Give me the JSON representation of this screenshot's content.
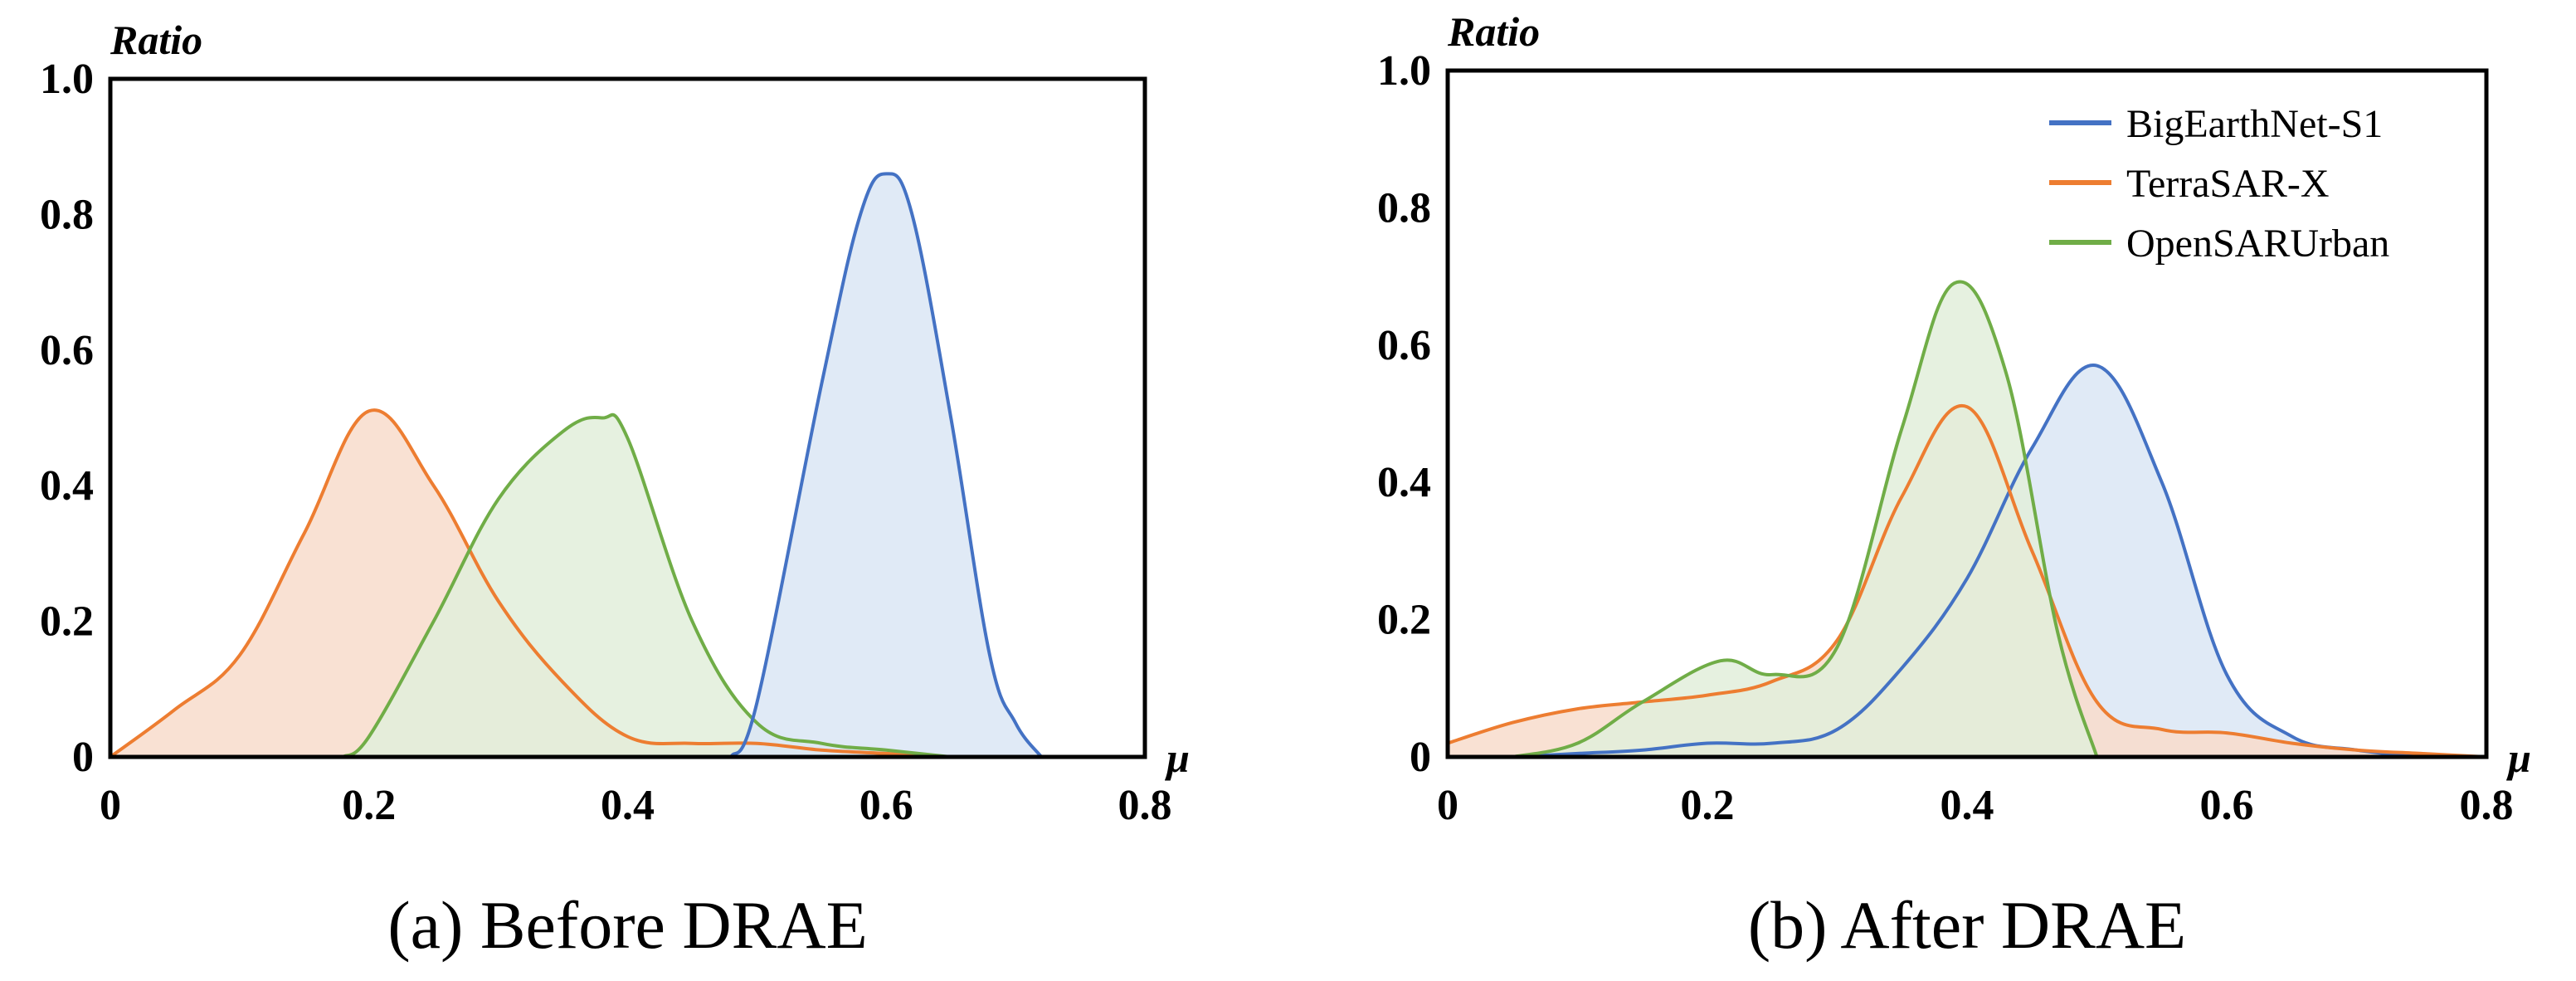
{
  "chart_data": [
    {
      "type": "area",
      "caption": "(a) Before DRAE",
      "xlabel": "μ",
      "ylabel": "Ratio",
      "xlim": [
        0,
        0.8
      ],
      "ylim": [
        0,
        1.0
      ],
      "xticks": [
        "0",
        "0.2",
        "0.4",
        "0.6",
        "0.8"
      ],
      "yticks": [
        "0",
        "0.2",
        "0.4",
        "0.6",
        "0.8",
        "1.0"
      ],
      "legend": null,
      "series": [
        {
          "name": "TerraSAR-X",
          "color": "#ED7D31",
          "fill": "#F8DCCB",
          "x": [
            0,
            0.05,
            0.1,
            0.15,
            0.2,
            0.25,
            0.3,
            0.35,
            0.4,
            0.45,
            0.5,
            0.55,
            0.6,
            0.65,
            0.7,
            0.75,
            0.8
          ],
          "y": [
            0,
            0.07,
            0.15,
            0.33,
            0.51,
            0.4,
            0.23,
            0.11,
            0.03,
            0.02,
            0.02,
            0.01,
            0.005,
            0,
            0,
            0,
            0
          ]
        },
        {
          "name": "OpenSARUrban",
          "color": "#70AD47",
          "fill": "#E2EFDA",
          "x": [
            0.18,
            0.2,
            0.25,
            0.3,
            0.35,
            0.38,
            0.4,
            0.45,
            0.5,
            0.55,
            0.6,
            0.65
          ],
          "y": [
            0,
            0.03,
            0.2,
            0.38,
            0.48,
            0.5,
            0.47,
            0.2,
            0.05,
            0.02,
            0.01,
            0
          ]
        },
        {
          "name": "BigEarthNet-S1",
          "color": "#4472C4",
          "fill": "#DAE6F4",
          "x": [
            0.48,
            0.5,
            0.55,
            0.58,
            0.6,
            0.62,
            0.65,
            0.68,
            0.7,
            0.72
          ],
          "y": [
            0,
            0.08,
            0.55,
            0.8,
            0.86,
            0.8,
            0.5,
            0.15,
            0.05,
            0
          ]
        }
      ]
    },
    {
      "type": "area",
      "caption": "(b) After DRAE",
      "xlabel": "μ",
      "ylabel": "Ratio",
      "xlim": [
        0,
        0.8
      ],
      "ylim": [
        0,
        1.0
      ],
      "xticks": [
        "0",
        "0.2",
        "0.4",
        "0.6",
        "0.8"
      ],
      "yticks": [
        "0",
        "0.2",
        "0.4",
        "0.6",
        "0.8",
        "1.0"
      ],
      "legend": [
        "BigEarthNet-S1",
        "TerraSAR-X",
        "OpenSARUrban"
      ],
      "series": [
        {
          "name": "BigEarthNet-S1",
          "color": "#4472C4",
          "fill": "#DAE6F4",
          "x": [
            0.05,
            0.1,
            0.15,
            0.2,
            0.25,
            0.3,
            0.35,
            0.4,
            0.45,
            0.5,
            0.55,
            0.6,
            0.65,
            0.7,
            0.75
          ],
          "y": [
            0,
            0.005,
            0.01,
            0.02,
            0.02,
            0.04,
            0.13,
            0.26,
            0.45,
            0.57,
            0.4,
            0.12,
            0.03,
            0.01,
            0
          ]
        },
        {
          "name": "TerraSAR-X",
          "color": "#ED7D31",
          "fill": "#F8DCCB",
          "x": [
            0,
            0.05,
            0.1,
            0.15,
            0.2,
            0.25,
            0.3,
            0.35,
            0.4,
            0.45,
            0.5,
            0.55,
            0.6,
            0.65,
            0.7,
            0.75,
            0.8
          ],
          "y": [
            0.02,
            0.05,
            0.07,
            0.08,
            0.09,
            0.11,
            0.17,
            0.38,
            0.51,
            0.3,
            0.08,
            0.04,
            0.035,
            0.02,
            0.01,
            0.005,
            0
          ]
        },
        {
          "name": "OpenSARUrban",
          "color": "#70AD47",
          "fill": "#E2EFDA",
          "x": [
            0.05,
            0.1,
            0.15,
            0.21,
            0.25,
            0.3,
            0.35,
            0.39,
            0.43,
            0.47,
            0.5
          ],
          "y": [
            0,
            0.02,
            0.08,
            0.14,
            0.12,
            0.16,
            0.48,
            0.69,
            0.56,
            0.18,
            0
          ]
        }
      ]
    }
  ]
}
